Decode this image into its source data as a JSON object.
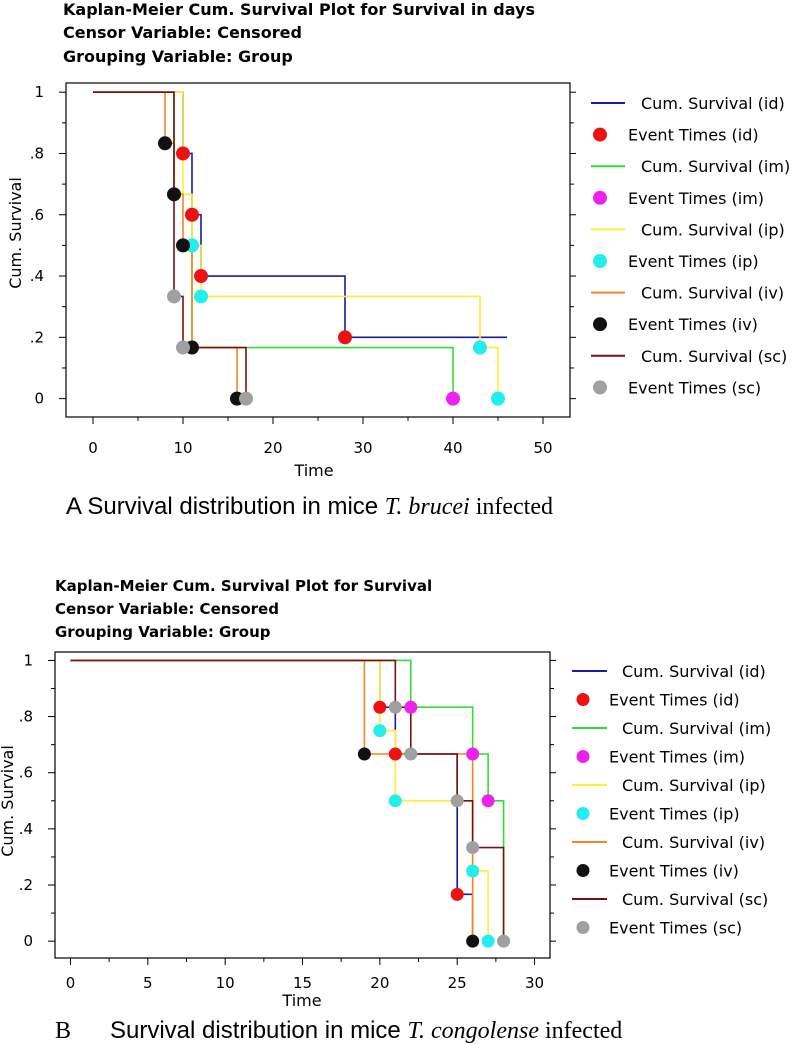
{
  "chart_data": [
    {
      "type": "line",
      "step": true,
      "title_lines": [
        "Kaplan-Meier Cum. Survival Plot for Survival in days",
        "Censor Variable: Censored",
        "Grouping Variable: Group"
      ],
      "xlabel": "Time",
      "ylabel": "Cum. Survival",
      "xlim": [
        -3,
        53
      ],
      "ylim": [
        -0.06,
        1.03
      ],
      "x_ticks": [
        0,
        10,
        20,
        30,
        40,
        50
      ],
      "x_tick_labels": [
        "0",
        "10",
        "20",
        "30",
        "40",
        "50"
      ],
      "y_ticks": [
        0,
        0.2,
        0.4,
        0.6,
        0.8,
        1
      ],
      "y_tick_labels": [
        "0",
        ".2",
        ".4",
        ".6",
        ".8",
        "1"
      ],
      "legend": [
        "Cum. Survival (id)",
        "Event Times (id)",
        "Cum. Survival (im)",
        "Event Times (im)",
        "Cum. Survival (ip)",
        "Event Times (ip)",
        "Cum. Survival (iv)",
        "Event Times (iv)",
        "Cum. Survival (sc)",
        "Event Times (sc)"
      ],
      "series": [
        {
          "name": "id",
          "color": "#1a1aa6",
          "marker_color": "#ee1111",
          "steps": [
            [
              0,
              1
            ],
            [
              10,
              0.8
            ],
            [
              11,
              0.6
            ],
            [
              12,
              0.4
            ],
            [
              28,
              0.2
            ],
            [
              46,
              0.2
            ]
          ],
          "events": [
            [
              10,
              0.8
            ],
            [
              11,
              0.6
            ],
            [
              12,
              0.4
            ],
            [
              28,
              0.2
            ]
          ]
        },
        {
          "name": "im",
          "color": "#33dd33",
          "marker_color": "#ee22ee",
          "steps": [
            [
              0,
              1
            ],
            [
              9,
              0.6667
            ],
            [
              11,
              0.1667
            ],
            [
              40,
              0
            ]
          ],
          "events": [
            [
              40,
              0
            ]
          ]
        },
        {
          "name": "ip",
          "color": "#ffee33",
          "marker_color": "#22eeee",
          "steps": [
            [
              0,
              1
            ],
            [
              10,
              0.6667
            ],
            [
              11,
              0.5
            ],
            [
              12,
              0.3333
            ],
            [
              43,
              0.1667
            ],
            [
              45,
              0
            ]
          ],
          "events": [
            [
              11,
              0.5
            ],
            [
              12,
              0.3333
            ],
            [
              43,
              0.1667
            ],
            [
              45,
              0
            ]
          ]
        },
        {
          "name": "iv",
          "color": "#ee8822",
          "marker_color": "#111111",
          "steps": [
            [
              0,
              1
            ],
            [
              8,
              0.8333
            ],
            [
              9,
              0.6667
            ],
            [
              10,
              0.5
            ],
            [
              11,
              0.1667
            ],
            [
              16,
              0
            ]
          ],
          "events": [
            [
              8,
              0.8333
            ],
            [
              9,
              0.6667
            ],
            [
              10,
              0.5
            ],
            [
              11,
              0.1667
            ],
            [
              16,
              0
            ]
          ]
        },
        {
          "name": "sc",
          "color": "#771111",
          "marker_color": "#a0a0a0",
          "steps": [
            [
              0,
              1
            ],
            [
              9,
              0.3333
            ],
            [
              10,
              0.1667
            ],
            [
              17,
              0
            ]
          ],
          "events": [
            [
              9,
              0.3333
            ],
            [
              10,
              0.1667
            ],
            [
              17,
              0
            ]
          ]
        }
      ]
    },
    {
      "type": "line",
      "step": true,
      "title_lines": [
        "Kaplan-Meier Cum. Survival Plot for Survival",
        "Censor Variable: Censored",
        "Grouping Variable: Group"
      ],
      "xlabel": "Time",
      "ylabel": "Cum. Survival",
      "xlim": [
        -1,
        31
      ],
      "ylim": [
        -0.06,
        1.03
      ],
      "x_ticks": [
        0,
        5,
        10,
        15,
        20,
        25,
        30
      ],
      "x_tick_labels": [
        "0",
        "5",
        "10",
        "15",
        "20",
        "25",
        "30"
      ],
      "y_ticks": [
        0,
        0.2,
        0.4,
        0.6,
        0.8,
        1
      ],
      "y_tick_labels": [
        "0",
        ".2",
        ".4",
        ".6",
        ".8",
        "1"
      ],
      "legend": [
        "Cum. Survival (id)",
        "Event Times (id)",
        "Cum. Survival (im)",
        "Event Times (im)",
        "Cum. Survival (ip)",
        "Event Times (ip)",
        "Cum. Survival (iv)",
        "Event Times (iv)",
        "Cum. Survival (sc)",
        "Event Times (sc)"
      ],
      "series": [
        {
          "name": "id",
          "color": "#1a1aa6",
          "marker_color": "#ee1111",
          "steps": [
            [
              0,
              1
            ],
            [
              20,
              0.8333
            ],
            [
              21,
              0.6667
            ],
            [
              25,
              0.1667
            ],
            [
              26,
              0
            ]
          ],
          "events": [
            [
              20,
              0.8333
            ],
            [
              21,
              0.6667
            ],
            [
              25,
              0.1667
            ]
          ]
        },
        {
          "name": "im",
          "color": "#33dd33",
          "marker_color": "#ee22ee",
          "steps": [
            [
              0,
              1
            ],
            [
              22,
              0.8333
            ],
            [
              26,
              0.6667
            ],
            [
              27,
              0.5
            ],
            [
              28,
              0
            ]
          ],
          "events": [
            [
              22,
              0.8333
            ],
            [
              26,
              0.6667
            ],
            [
              27,
              0.5
            ]
          ]
        },
        {
          "name": "ip",
          "color": "#ffee33",
          "marker_color": "#22eeee",
          "steps": [
            [
              0,
              1
            ],
            [
              20,
              0.75
            ],
            [
              21,
              0.5
            ],
            [
              26,
              0.25
            ],
            [
              27,
              0
            ]
          ],
          "events": [
            [
              20,
              0.75
            ],
            [
              21,
              0.5
            ],
            [
              26,
              0.25
            ],
            [
              27,
              0
            ]
          ]
        },
        {
          "name": "iv",
          "color": "#ee8822",
          "marker_color": "#111111",
          "steps": [
            [
              0,
              1
            ],
            [
              19,
              0.6667
            ],
            [
              26,
              0
            ]
          ],
          "events": [
            [
              19,
              0.6667
            ],
            [
              26,
              0
            ]
          ]
        },
        {
          "name": "sc",
          "color": "#771111",
          "marker_color": "#a0a0a0",
          "steps": [
            [
              0,
              1
            ],
            [
              21,
              0.8333
            ],
            [
              22,
              0.6667
            ],
            [
              25,
              0.5
            ],
            [
              26,
              0.3333
            ],
            [
              28,
              0
            ]
          ],
          "events": [
            [
              21,
              0.8333
            ],
            [
              22,
              0.6667
            ],
            [
              25,
              0.5
            ],
            [
              26,
              0.3333
            ],
            [
              28,
              0
            ]
          ]
        }
      ]
    }
  ],
  "captions": [
    {
      "label": "",
      "main": "A Survival distribution in mice ",
      "italic": "T. brucei",
      "tail": " infected"
    },
    {
      "label": "B",
      "main": "Survival distribution in mice ",
      "italic": "T. congolense",
      "tail": " infected"
    }
  ]
}
